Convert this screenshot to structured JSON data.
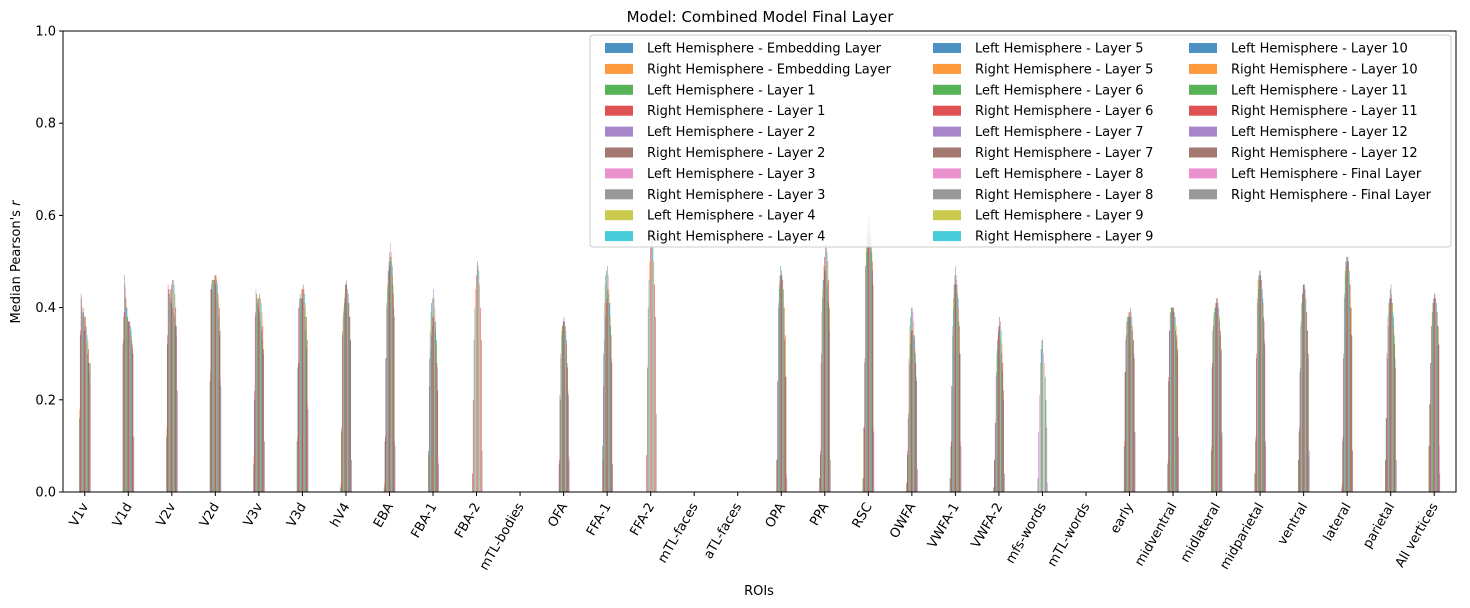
{
  "chart_data": {
    "type": "bar",
    "title": "Model: Combined Model Final Layer",
    "xlabel": "ROIs",
    "ylabel": "Median Pearson's r",
    "ylim": [
      0,
      1.0
    ],
    "yticks": [
      "0.0",
      "0.2",
      "0.4",
      "0.6",
      "0.8",
      "1.0"
    ],
    "legend_position": "top-right",
    "legend_columns": 3,
    "categories": [
      "V1v",
      "V1d",
      "V2v",
      "V2d",
      "V3v",
      "V3d",
      "hV4",
      "EBA",
      "FBA-1",
      "FBA-2",
      "mTL-bodies",
      "OFA",
      "FFA-1",
      "FFA-2",
      "mTL-faces",
      "aTL-faces",
      "OPA",
      "PPA",
      "RSC",
      "OWFA",
      "VWFA-1",
      "VWFA-2",
      "mfs-words",
      "mTL-words",
      "early",
      "midventral",
      "midlateral",
      "midparietal",
      "ventral",
      "lateral",
      "parietal",
      "All vertices"
    ],
    "series_names": [
      "Left Hemisphere - Embedding Layer",
      "Right Hemisphere - Embedding Layer",
      "Left Hemisphere - Layer 1",
      "Right Hemisphere - Layer 1",
      "Left Hemisphere - Layer 2",
      "Right Hemisphere - Layer 2",
      "Left Hemisphere - Layer 3",
      "Right Hemisphere - Layer 3",
      "Left Hemisphere - Layer 4",
      "Right Hemisphere - Layer 4",
      "Left Hemisphere - Layer 5",
      "Right Hemisphere - Layer 5",
      "Left Hemisphere - Layer 6",
      "Right Hemisphere - Layer 6",
      "Left Hemisphere - Layer 7",
      "Right Hemisphere - Layer 7",
      "Left Hemisphere - Layer 8",
      "Right Hemisphere - Layer 8",
      "Left Hemisphere - Layer 9",
      "Right Hemisphere - Layer 9",
      "Left Hemisphere - Layer 10",
      "Right Hemisphere - Layer 10",
      "Left Hemisphere - Layer 11",
      "Right Hemisphere - Layer 11",
      "Left Hemisphere - Layer 12",
      "Right Hemisphere - Layer 12",
      "Left Hemisphere - Final Layer",
      "Right Hemisphere - Final Layer"
    ],
    "colors": [
      "#1f77b4",
      "#ff7f0e",
      "#2ca02c",
      "#d62728",
      "#9467bd",
      "#8c564b",
      "#e377c2",
      "#7f7f7f",
      "#bcbd22",
      "#17becf"
    ],
    "left_hemisphere_values": [
      [
        0.16,
        0.34,
        0.43,
        0.39,
        0.38,
        0.39,
        0.35,
        0.36,
        0.35,
        0.32,
        0.3,
        0.28,
        0.26,
        0.24
      ],
      [
        0.32,
        0.38,
        0.47,
        0.44,
        0.42,
        0.4,
        0.38,
        0.37,
        0.37,
        0.36,
        0.35,
        0.33,
        0.31,
        0.12
      ],
      [
        0.12,
        0.32,
        0.45,
        0.44,
        0.43,
        0.42,
        0.41,
        0.4,
        0.4,
        0.39,
        0.38,
        0.36,
        0.34,
        0.22
      ],
      [
        0.24,
        0.44,
        0.45,
        0.44,
        0.46,
        0.46,
        0.46,
        0.45,
        0.44,
        0.43,
        0.41,
        0.38,
        0.34,
        0.24
      ],
      [
        0.06,
        0.2,
        0.38,
        0.44,
        0.43,
        0.41,
        0.4,
        0.39,
        0.38,
        0.37,
        0.35,
        0.33,
        0.3,
        0.11
      ],
      [
        0.11,
        0.27,
        0.4,
        0.42,
        0.42,
        0.42,
        0.42,
        0.42,
        0.41,
        0.4,
        0.38,
        0.35,
        0.31,
        0.19
      ],
      [
        0.01,
        0.13,
        0.34,
        0.38,
        0.4,
        0.42,
        0.45,
        0.46,
        0.44,
        0.43,
        0.41,
        0.38,
        0.33,
        0.07
      ],
      [
        0.01,
        0.11,
        0.29,
        0.41,
        0.45,
        0.48,
        0.5,
        0.52,
        0.54,
        0.52,
        0.49,
        0.45,
        0.4,
        0.11
      ],
      [
        0.0,
        0.09,
        0.29,
        0.35,
        0.39,
        0.41,
        0.42,
        0.44,
        0.42,
        0.4,
        0.37,
        0.33,
        0.27,
        0.07
      ],
      [
        0.0,
        0.0,
        0.0,
        0.0,
        0.0,
        0.0,
        0.0,
        0.0,
        0.0,
        0.0,
        0.0,
        0.0,
        0.0,
        0.0
      ],
      [
        0.0,
        0.0,
        0.0,
        0.0,
        0.0,
        0.0,
        0.0,
        0.0,
        0.0,
        0.0,
        0.0,
        0.0,
        0.0,
        0.0
      ],
      [
        0.0,
        0.06,
        0.21,
        0.3,
        0.35,
        0.36,
        0.37,
        0.38,
        0.37,
        0.36,
        0.33,
        0.28,
        0.22,
        0.08
      ],
      [
        0.0,
        0.1,
        0.3,
        0.41,
        0.45,
        0.47,
        0.48,
        0.49,
        0.47,
        0.44,
        0.41,
        0.36,
        0.29,
        0.06
      ],
      [
        0.0,
        0.0,
        0.0,
        0.0,
        0.0,
        0.0,
        0.0,
        0.0,
        0.0,
        0.0,
        0.0,
        0.0,
        0.0,
        0.0
      ],
      [
        0.0,
        0.0,
        0.0,
        0.0,
        0.0,
        0.0,
        0.0,
        0.0,
        0.0,
        0.0,
        0.0,
        0.0,
        0.0,
        0.0
      ],
      [
        0.0,
        0.0,
        0.0,
        0.0,
        0.0,
        0.0,
        0.0,
        0.0,
        0.0,
        0.0,
        0.0,
        0.0,
        0.0,
        0.0
      ],
      [
        0.0,
        0.07,
        0.24,
        0.41,
        0.45,
        0.47,
        0.49,
        0.48,
        0.46,
        0.44,
        0.4,
        0.33,
        0.25,
        0.04
      ],
      [
        0.03,
        0.08,
        0.28,
        0.39,
        0.44,
        0.46,
        0.48,
        0.49,
        0.48,
        0.47,
        0.45,
        0.41,
        0.35,
        0.06
      ],
      [
        0.03,
        0.14,
        0.28,
        0.49,
        0.53,
        0.56,
        0.58,
        0.6,
        0.59,
        0.57,
        0.55,
        0.52,
        0.48,
        0.14
      ],
      [
        0.02,
        0.08,
        0.16,
        0.29,
        0.36,
        0.38,
        0.4,
        0.4,
        0.39,
        0.37,
        0.34,
        0.3,
        0.25,
        0.05
      ],
      [
        0.03,
        0.1,
        0.23,
        0.36,
        0.42,
        0.45,
        0.47,
        0.49,
        0.47,
        0.45,
        0.42,
        0.37,
        0.3,
        0.11
      ],
      [
        0.01,
        0.07,
        0.15,
        0.25,
        0.3,
        0.33,
        0.35,
        0.36,
        0.34,
        0.33,
        0.3,
        0.26,
        0.2,
        0.04
      ],
      [
        0.0,
        0.03,
        0.13,
        0.21,
        0.28,
        0.31,
        0.33,
        0.33,
        0.3,
        0.28,
        0.25,
        0.2,
        0.14,
        0.02
      ],
      [
        0.0,
        0.0,
        0.0,
        0.0,
        0.0,
        0.0,
        0.0,
        0.0,
        0.0,
        0.0,
        0.0,
        0.0,
        0.0,
        0.0
      ],
      [
        0.1,
        0.26,
        0.33,
        0.37,
        0.38,
        0.38,
        0.38,
        0.38,
        0.37,
        0.36,
        0.35,
        0.33,
        0.3,
        0.13
      ],
      [
        0.06,
        0.24,
        0.35,
        0.39,
        0.4,
        0.4,
        0.4,
        0.39,
        0.38,
        0.37,
        0.35,
        0.33,
        0.3,
        0.12
      ],
      [
        0.09,
        0.27,
        0.35,
        0.38,
        0.39,
        0.4,
        0.41,
        0.41,
        0.4,
        0.39,
        0.37,
        0.34,
        0.3,
        0.12
      ],
      [
        0.04,
        0.11,
        0.29,
        0.42,
        0.46,
        0.47,
        0.48,
        0.48,
        0.46,
        0.44,
        0.42,
        0.38,
        0.33,
        0.1
      ],
      [
        0.07,
        0.13,
        0.26,
        0.36,
        0.41,
        0.43,
        0.45,
        0.45,
        0.44,
        0.42,
        0.39,
        0.35,
        0.29,
        0.08
      ],
      [
        0.01,
        0.11,
        0.29,
        0.43,
        0.48,
        0.5,
        0.51,
        0.51,
        0.5,
        0.48,
        0.45,
        0.4,
        0.34,
        0.09
      ],
      [
        0.07,
        0.16,
        0.3,
        0.38,
        0.41,
        0.42,
        0.44,
        0.45,
        0.43,
        0.41,
        0.38,
        0.34,
        0.29,
        0.07
      ],
      [
        0.1,
        0.19,
        0.28,
        0.36,
        0.39,
        0.41,
        0.42,
        0.43,
        0.42,
        0.41,
        0.39,
        0.36,
        0.32,
        0.1
      ]
    ],
    "right_hemisphere_values": [
      [
        0.18,
        0.35,
        0.42,
        0.4,
        0.39,
        0.4,
        0.38,
        0.38,
        0.36,
        0.34,
        0.33,
        0.31,
        0.28,
        0.28
      ],
      [
        0.33,
        0.39,
        0.45,
        0.42,
        0.4,
        0.38,
        0.37,
        0.37,
        0.37,
        0.36,
        0.34,
        0.32,
        0.3,
        0.12
      ],
      [
        0.14,
        0.34,
        0.44,
        0.43,
        0.44,
        0.44,
        0.45,
        0.46,
        0.46,
        0.45,
        0.43,
        0.4,
        0.36,
        0.22
      ],
      [
        0.26,
        0.44,
        0.46,
        0.46,
        0.46,
        0.47,
        0.47,
        0.47,
        0.46,
        0.45,
        0.43,
        0.4,
        0.35,
        0.23
      ],
      [
        0.08,
        0.22,
        0.39,
        0.43,
        0.42,
        0.42,
        0.42,
        0.43,
        0.42,
        0.41,
        0.39,
        0.36,
        0.31,
        0.11
      ],
      [
        0.12,
        0.28,
        0.4,
        0.42,
        0.43,
        0.44,
        0.44,
        0.45,
        0.44,
        0.43,
        0.41,
        0.38,
        0.33,
        0.18
      ],
      [
        0.02,
        0.14,
        0.35,
        0.39,
        0.41,
        0.43,
        0.45,
        0.45,
        0.44,
        0.43,
        0.41,
        0.38,
        0.33,
        0.07
      ],
      [
        0.02,
        0.12,
        0.29,
        0.4,
        0.44,
        0.47,
        0.49,
        0.51,
        0.51,
        0.5,
        0.47,
        0.43,
        0.38,
        0.1
      ],
      [
        0.0,
        0.08,
        0.23,
        0.31,
        0.34,
        0.36,
        0.38,
        0.38,
        0.37,
        0.35,
        0.32,
        0.28,
        0.22,
        0.06
      ],
      [
        0.0,
        0.04,
        0.2,
        0.33,
        0.4,
        0.44,
        0.47,
        0.5,
        0.49,
        0.48,
        0.45,
        0.4,
        0.33,
        0.09
      ],
      [
        0.0,
        0.0,
        0.0,
        0.0,
        0.0,
        0.0,
        0.0,
        0.0,
        0.0,
        0.0,
        0.0,
        0.0,
        0.0,
        0.0
      ],
      [
        0.0,
        0.07,
        0.2,
        0.29,
        0.34,
        0.36,
        0.37,
        0.37,
        0.36,
        0.35,
        0.32,
        0.27,
        0.21,
        0.07
      ],
      [
        0.0,
        0.07,
        0.23,
        0.33,
        0.38,
        0.41,
        0.42,
        0.44,
        0.43,
        0.41,
        0.38,
        0.34,
        0.28,
        0.06
      ],
      [
        0.0,
        0.08,
        0.27,
        0.4,
        0.46,
        0.5,
        0.53,
        0.56,
        0.55,
        0.53,
        0.5,
        0.45,
        0.38,
        0.17
      ],
      [
        0.0,
        0.0,
        0.0,
        0.0,
        0.0,
        0.0,
        0.0,
        0.0,
        0.0,
        0.0,
        0.0,
        0.0,
        0.0,
        0.0
      ],
      [
        0.0,
        0.0,
        0.0,
        0.0,
        0.0,
        0.0,
        0.0,
        0.0,
        0.0,
        0.0,
        0.0,
        0.0,
        0.0,
        0.0
      ],
      [
        0.0,
        0.07,
        0.24,
        0.4,
        0.44,
        0.46,
        0.47,
        0.47,
        0.46,
        0.44,
        0.4,
        0.34,
        0.25,
        0.03
      ],
      [
        0.03,
        0.09,
        0.3,
        0.42,
        0.46,
        0.49,
        0.51,
        0.54,
        0.53,
        0.52,
        0.5,
        0.46,
        0.4,
        0.07
      ],
      [
        0.03,
        0.14,
        0.29,
        0.49,
        0.52,
        0.54,
        0.55,
        0.57,
        0.56,
        0.55,
        0.53,
        0.5,
        0.45,
        0.13
      ],
      [
        0.02,
        0.09,
        0.17,
        0.28,
        0.32,
        0.34,
        0.35,
        0.35,
        0.34,
        0.33,
        0.31,
        0.28,
        0.24,
        0.05
      ],
      [
        0.03,
        0.11,
        0.23,
        0.34,
        0.4,
        0.43,
        0.45,
        0.46,
        0.45,
        0.43,
        0.4,
        0.36,
        0.3,
        0.1
      ],
      [
        0.01,
        0.07,
        0.15,
        0.26,
        0.31,
        0.34,
        0.36,
        0.38,
        0.37,
        0.35,
        0.32,
        0.28,
        0.22,
        0.04
      ],
      [
        0.0,
        0.0,
        0.0,
        0.0,
        0.0,
        0.0,
        0.0,
        0.0,
        0.0,
        0.0,
        0.0,
        0.0,
        0.0,
        0.0
      ],
      [
        0.0,
        0.0,
        0.0,
        0.0,
        0.0,
        0.0,
        0.0,
        0.0,
        0.0,
        0.0,
        0.0,
        0.0,
        0.0,
        0.0
      ],
      [
        0.11,
        0.26,
        0.34,
        0.37,
        0.38,
        0.39,
        0.39,
        0.4,
        0.39,
        0.38,
        0.36,
        0.33,
        0.29,
        0.13
      ],
      [
        0.07,
        0.25,
        0.35,
        0.39,
        0.4,
        0.4,
        0.4,
        0.4,
        0.39,
        0.38,
        0.36,
        0.34,
        0.31,
        0.12
      ],
      [
        0.1,
        0.28,
        0.36,
        0.39,
        0.4,
        0.41,
        0.42,
        0.42,
        0.41,
        0.4,
        0.38,
        0.35,
        0.31,
        0.13
      ],
      [
        0.04,
        0.12,
        0.3,
        0.41,
        0.44,
        0.46,
        0.47,
        0.47,
        0.46,
        0.44,
        0.41,
        0.37,
        0.32,
        0.11
      ],
      [
        0.07,
        0.14,
        0.27,
        0.37,
        0.41,
        0.43,
        0.45,
        0.45,
        0.44,
        0.42,
        0.39,
        0.35,
        0.3,
        0.09
      ],
      [
        0.02,
        0.12,
        0.3,
        0.42,
        0.47,
        0.49,
        0.5,
        0.51,
        0.5,
        0.48,
        0.45,
        0.4,
        0.34,
        0.09
      ],
      [
        0.07,
        0.16,
        0.29,
        0.36,
        0.39,
        0.41,
        0.42,
        0.42,
        0.41,
        0.39,
        0.36,
        0.32,
        0.27,
        0.07
      ],
      [
        0.1,
        0.19,
        0.28,
        0.36,
        0.39,
        0.41,
        0.42,
        0.43,
        0.42,
        0.41,
        0.39,
        0.36,
        0.32,
        0.04
      ]
    ]
  }
}
